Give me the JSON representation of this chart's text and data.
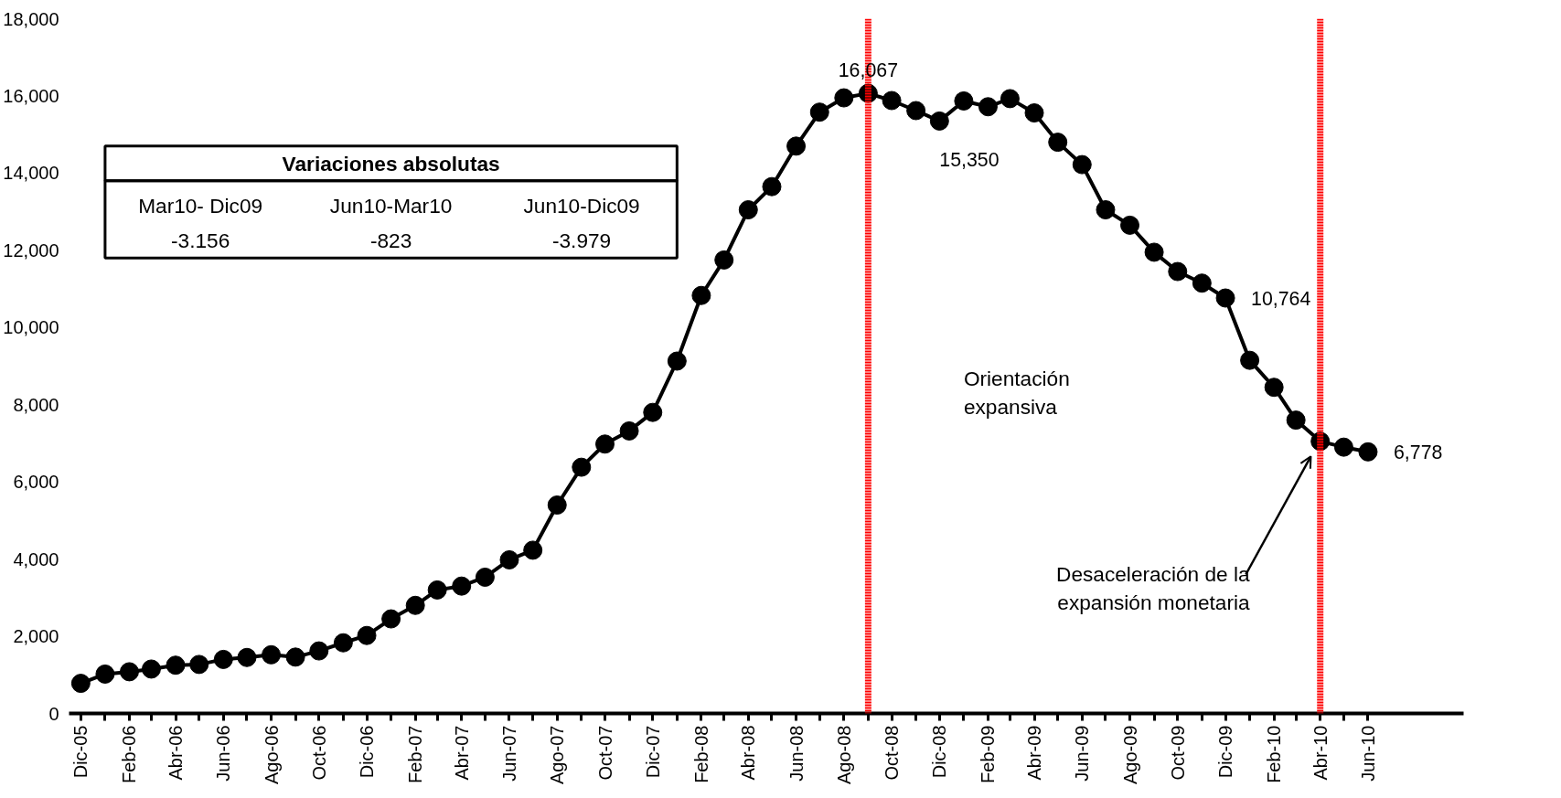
{
  "chart_data": {
    "type": "line",
    "x": [
      "2005-12",
      "2006-01",
      "2006-02",
      "2006-03",
      "2006-04",
      "2006-05",
      "2006-06",
      "2006-07",
      "2006-08",
      "2006-09",
      "2006-10",
      "2006-11",
      "2006-12",
      "2007-01",
      "2007-02",
      "2007-03",
      "2007-04",
      "2007-05",
      "2007-06",
      "2007-07",
      "2007-08",
      "2007-09",
      "2007-10",
      "2007-11",
      "2007-12",
      "2008-01",
      "2008-02",
      "2008-03",
      "2008-04",
      "2008-05",
      "2008-06",
      "2008-07",
      "2008-08",
      "2008-09",
      "2008-10",
      "2008-11",
      "2008-12",
      "2009-01",
      "2009-02",
      "2009-03",
      "2009-04",
      "2009-05",
      "2009-06",
      "2009-07",
      "2009-08",
      "2009-09",
      "2009-10",
      "2009-11",
      "2009-12",
      "2010-01",
      "2010-02",
      "2010-03",
      "2010-04",
      "2010-05",
      "2010-06"
    ],
    "series": [
      {
        "color": "#000000",
        "values": [
          780,
          1020,
          1080,
          1150,
          1250,
          1270,
          1400,
          1450,
          1520,
          1460,
          1620,
          1830,
          2020,
          2450,
          2800,
          3200,
          3300,
          3530,
          3980,
          4230,
          5400,
          6380,
          6980,
          7320,
          7800,
          9130,
          10830,
          11750,
          13050,
          13650,
          14700,
          15580,
          15950,
          16067,
          15880,
          15620,
          15350,
          15870,
          15720,
          15930,
          15560,
          14800,
          14220,
          13050,
          12650,
          11950,
          11450,
          11150,
          10764,
          9150,
          8450,
          7600,
          7050,
          6900,
          6778
        ],
        "value_labels": [
          null,
          null,
          null,
          null,
          null,
          null,
          null,
          null,
          null,
          null,
          null,
          null,
          null,
          null,
          null,
          null,
          null,
          null,
          null,
          null,
          null,
          null,
          null,
          null,
          null,
          null,
          null,
          null,
          null,
          null,
          null,
          null,
          null,
          "16,067",
          null,
          null,
          "15,350",
          null,
          null,
          null,
          null,
          null,
          null,
          null,
          null,
          null,
          null,
          null,
          "10,764",
          null,
          null,
          null,
          null,
          null,
          "6,778"
        ]
      }
    ],
    "marker": "circle",
    "line_style": "solid",
    "grid": false,
    "xlim": [
      "2005-11-16",
      "2010-10-01"
    ],
    "xticks": [
      {
        "value": "2005-12",
        "label": "Dic-05"
      },
      {
        "value": "2006-01",
        "label": null
      },
      {
        "value": "2006-02",
        "label": "Feb-06"
      },
      {
        "value": "2006-03",
        "label": null
      },
      {
        "value": "2006-04",
        "label": "Abr-06"
      },
      {
        "value": "2006-05",
        "label": null
      },
      {
        "value": "2006-06",
        "label": "Jun-06"
      },
      {
        "value": "2006-07",
        "label": null
      },
      {
        "value": "2006-08",
        "label": "Ago-06"
      },
      {
        "value": "2006-09",
        "label": null
      },
      {
        "value": "2006-10",
        "label": "Oct-06"
      },
      {
        "value": "2006-11",
        "label": null
      },
      {
        "value": "2006-12",
        "label": "Dic-06"
      },
      {
        "value": "2007-01",
        "label": null
      },
      {
        "value": "2007-02",
        "label": "Feb-07"
      },
      {
        "value": "2007-03",
        "label": null
      },
      {
        "value": "2007-04",
        "label": "Abr-07"
      },
      {
        "value": "2007-05",
        "label": null
      },
      {
        "value": "2007-06",
        "label": "Jun-07"
      },
      {
        "value": "2007-07",
        "label": null
      },
      {
        "value": "2007-08",
        "label": "Ago-07"
      },
      {
        "value": "2007-09",
        "label": null
      },
      {
        "value": "2007-10",
        "label": "Oct-07"
      },
      {
        "value": "2007-11",
        "label": null
      },
      {
        "value": "2007-12",
        "label": "Dic-07"
      },
      {
        "value": "2008-01",
        "label": null
      },
      {
        "value": "2008-02",
        "label": "Feb-08"
      },
      {
        "value": "2008-03",
        "label": null
      },
      {
        "value": "2008-04",
        "label": "Abr-08"
      },
      {
        "value": "2008-05",
        "label": null
      },
      {
        "value": "2008-06",
        "label": "Jun-08"
      },
      {
        "value": "2008-07",
        "label": null
      },
      {
        "value": "2008-08",
        "label": "Ago-08"
      },
      {
        "value": "2008-09",
        "label": null
      },
      {
        "value": "2008-10",
        "label": "Oct-08"
      },
      {
        "value": "2008-11",
        "label": null
      },
      {
        "value": "2008-12",
        "label": "Dic-08"
      },
      {
        "value": "2009-01",
        "label": null
      },
      {
        "value": "2009-02",
        "label": "Feb-09"
      },
      {
        "value": "2009-03",
        "label": null
      },
      {
        "value": "2009-04",
        "label": "Abr-09"
      },
      {
        "value": "2009-05",
        "label": null
      },
      {
        "value": "2009-06",
        "label": "Jun-09"
      },
      {
        "value": "2009-07",
        "label": null
      },
      {
        "value": "2009-08",
        "label": "Ago-09"
      },
      {
        "value": "2009-09",
        "label": null
      },
      {
        "value": "2009-10",
        "label": "Oct-09"
      },
      {
        "value": "2009-11",
        "label": null
      },
      {
        "value": "2009-12",
        "label": "Dic-09"
      },
      {
        "value": "2010-01",
        "label": null
      },
      {
        "value": "2010-02",
        "label": "Feb-10"
      },
      {
        "value": "2010-03",
        "label": null
      },
      {
        "value": "2010-04",
        "label": "Abr-10"
      },
      {
        "value": "2010-05",
        "label": null
      },
      {
        "value": "2010-06",
        "label": "Jun-10"
      }
    ],
    "ylim": [
      0,
      18000
    ],
    "yticks": [
      0,
      {
        "value": 2000,
        "label": "2,000"
      },
      {
        "value": 4000,
        "label": "4,000"
      },
      {
        "value": 6000,
        "label": "6,000"
      },
      {
        "value": 8000,
        "label": "8,000"
      },
      {
        "value": 10000,
        "label": "10,000"
      },
      {
        "value": 12000,
        "label": "12,000"
      },
      {
        "value": 14000,
        "label": "14,000"
      },
      {
        "value": 16000,
        "label": "16,000"
      },
      {
        "value": 18000,
        "label": "18,000"
      }
    ],
    "ref_lines": [
      {
        "axis": "x",
        "value": "2008-09",
        "label": null,
        "color": "#ff0000",
        "line_style": "dotted"
      },
      {
        "axis": "x",
        "value": "2010-04",
        "label": null,
        "color": "#ff0000",
        "line_style": "dotted"
      }
    ],
    "annotations": [
      "Variaciones absolutas",
      "Mar10- Dic09",
      "Jun10-Mar10",
      "Jun10-Dic09",
      "-3.156",
      "-823",
      "-3.979",
      "Orientación\nexpansiva",
      "Desaceleración de la\nexpansión monetaria"
    ]
  }
}
